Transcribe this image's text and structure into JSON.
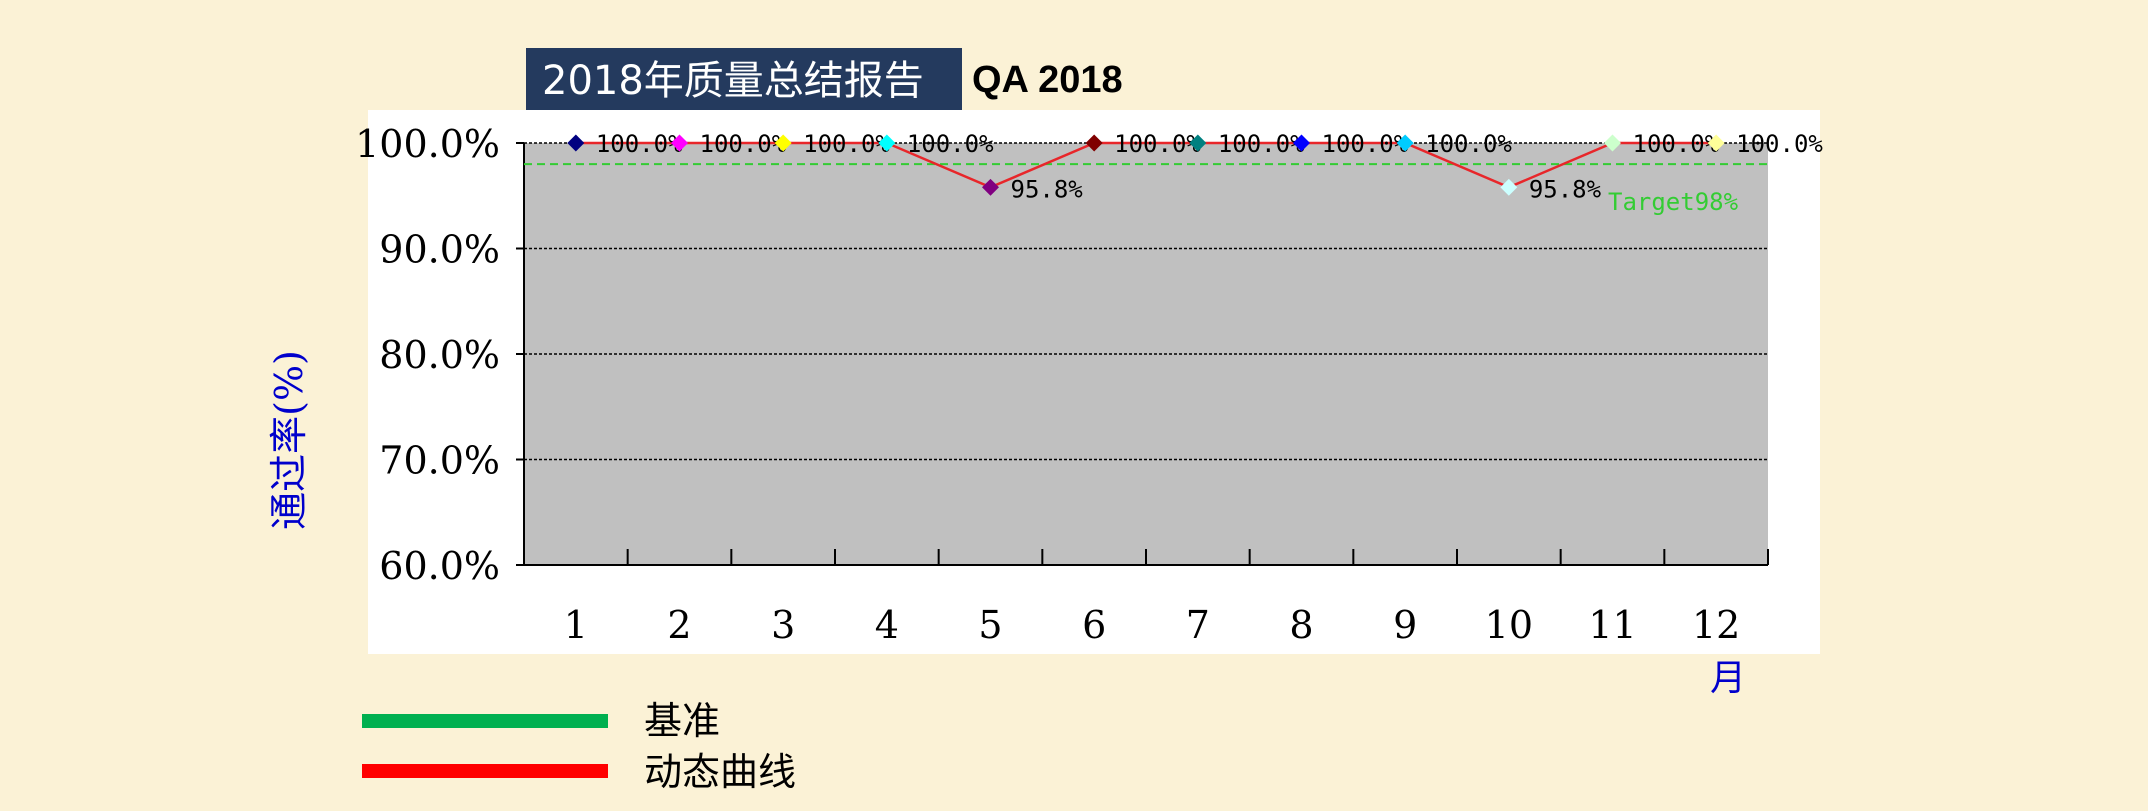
{
  "header": {
    "title": "2018年质量总结报告",
    "subtitle": "QA 2018"
  },
  "chart_data": {
    "type": "line",
    "ylabel": "通过率(%)",
    "xlabel": "月",
    "ylim": [
      0.6,
      1.0
    ],
    "yticks": [
      "60.0%",
      "70.0%",
      "80.0%",
      "90.0%",
      "100.0%"
    ],
    "categories": [
      "1",
      "2",
      "3",
      "4",
      "5",
      "6",
      "7",
      "8",
      "9",
      "10",
      "11",
      "12"
    ],
    "grid": true,
    "series": [
      {
        "name": "动态曲线",
        "color": "#E8262A",
        "values": [
          1.0,
          1.0,
          1.0,
          1.0,
          0.958,
          1.0,
          1.0,
          1.0,
          1.0,
          0.958,
          1.0,
          1.0
        ],
        "labels": [
          "100.0%",
          "100.0%",
          "100.0%",
          "100.0%",
          "95.8%",
          "100.0%",
          "100.0%",
          "100.0%",
          "100.0%",
          "95.8%",
          "100.0%",
          "100.0%"
        ]
      },
      {
        "name": "基准",
        "color": "#33CC33",
        "value": 0.98,
        "label": "Target98%"
      }
    ],
    "marker_colors": [
      "#000080",
      "#FF00FF",
      "#FFFF00",
      "#00FFFF",
      "#800080",
      "#800000",
      "#008080",
      "#0000FF",
      "#00CCFF",
      "#CCFFFF",
      "#CCFFCC",
      "#FFFF99"
    ],
    "legend": [
      {
        "label": "基准",
        "color": "#00B050"
      },
      {
        "label": "动态曲线",
        "color": "#FF0000"
      }
    ]
  }
}
